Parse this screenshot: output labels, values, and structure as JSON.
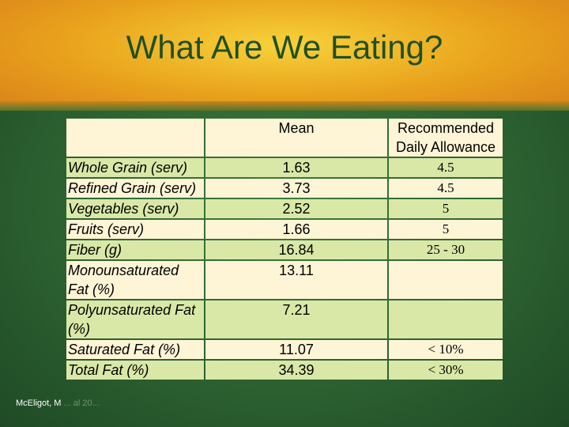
{
  "slide": {
    "title": "What Are We Eating?",
    "credit": "McEligot, M",
    "credit_faint": "...   al 20..."
  },
  "table": {
    "headers": {
      "label": "",
      "mean": "Mean",
      "rda": "Recommended Daily Allowance"
    },
    "rows": [
      {
        "label": "Whole Grain (serv)",
        "mean": "1.63",
        "rda": "4.5"
      },
      {
        "label": "Refined Grain (serv)",
        "mean": "3.73",
        "rda": "4.5"
      },
      {
        "label": "Vegetables (serv)",
        "mean": "2.52",
        "rda": "5"
      },
      {
        "label": "Fruits (serv)",
        "mean": "1.66",
        "rda": "5"
      },
      {
        "label": "Fiber (g)",
        "mean": "16.84",
        "rda": "25 - 30"
      },
      {
        "label": "Monounsaturated Fat (%)",
        "mean": "13.11",
        "rda": ""
      },
      {
        "label": "Polyunsaturated Fat (%)",
        "mean": "7.21",
        "rda": ""
      },
      {
        "label": "Saturated Fat (%)",
        "mean": "11.07",
        "rda": "< 10%"
      },
      {
        "label": "Total Fat (%)",
        "mean": "34.39",
        "rda": "< 30%"
      }
    ]
  },
  "colors": {
    "title": "#214f22",
    "header_bg": "#fef4d6",
    "row_green": "#d9e8a7",
    "row_cream": "#fef4d6"
  }
}
